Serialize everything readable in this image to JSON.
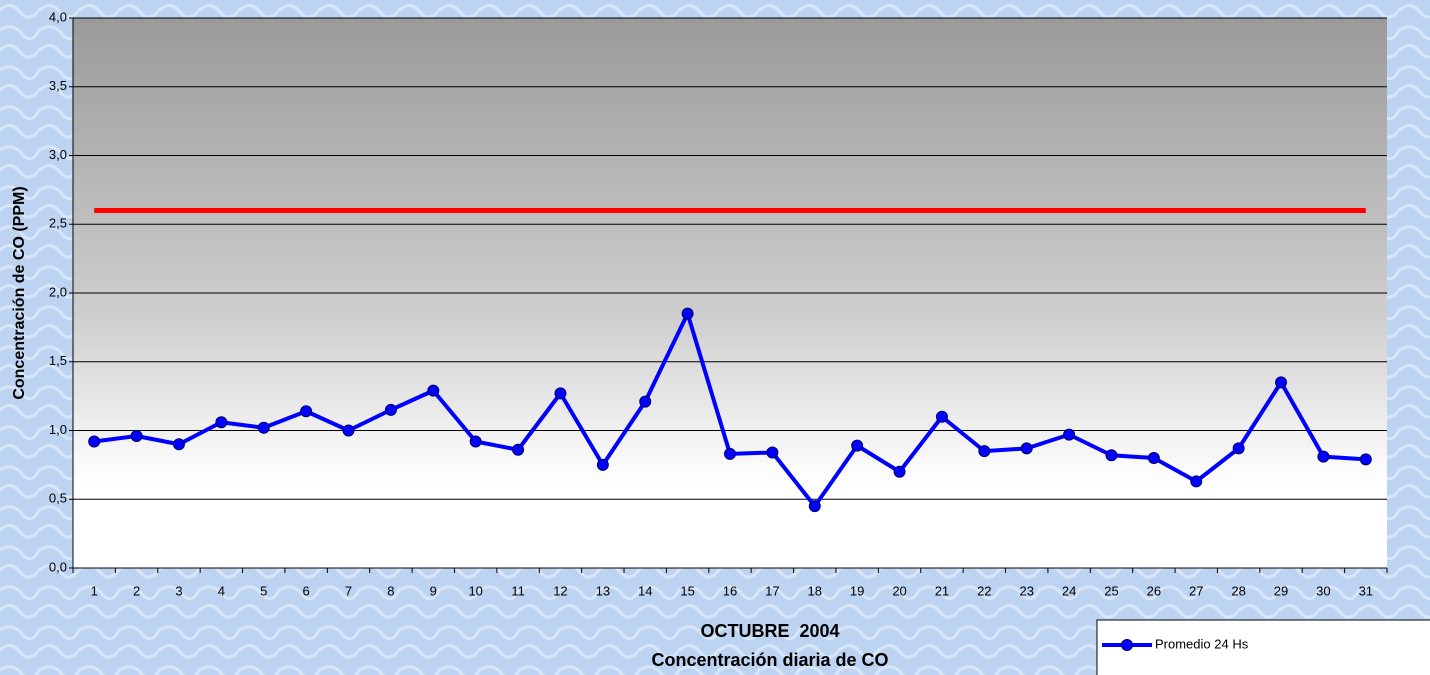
{
  "chart_data": {
    "type": "line",
    "title": "Concentración diaria de CO",
    "xlabel": "OCTUBRE  2004",
    "ylabel": "Concentración de CO (PPM)",
    "categories": [
      "1",
      "2",
      "3",
      "4",
      "5",
      "6",
      "7",
      "8",
      "9",
      "10",
      "11",
      "12",
      "13",
      "14",
      "15",
      "16",
      "17",
      "18",
      "19",
      "20",
      "21",
      "22",
      "23",
      "24",
      "25",
      "26",
      "27",
      "28",
      "29",
      "30",
      "31"
    ],
    "series": [
      {
        "name": "Promedio 24 Hs",
        "color": "#0000ff",
        "values": [
          0.92,
          0.96,
          0.9,
          1.06,
          1.02,
          1.14,
          1.0,
          1.15,
          1.29,
          0.92,
          0.86,
          1.27,
          0.75,
          1.21,
          1.85,
          0.83,
          0.84,
          0.45,
          0.89,
          0.7,
          1.1,
          0.85,
          0.87,
          0.97,
          0.82,
          0.8,
          0.63,
          0.87,
          1.35,
          0.81,
          0.79
        ]
      }
    ],
    "reference_line": {
      "value": 2.6,
      "color": "#ff0000"
    },
    "ylim": [
      0,
      4
    ],
    "yticks": [
      {
        "value": 0,
        "label": "0,0"
      },
      {
        "value": 0.5,
        "label": "0,5"
      },
      {
        "value": 1,
        "label": "1,0"
      },
      {
        "value": 1.5,
        "label": "1,5"
      },
      {
        "value": 2,
        "label": "2,0"
      },
      {
        "value": 2.5,
        "label": "2,5"
      },
      {
        "value": 3,
        "label": "3,0"
      },
      {
        "value": 3.5,
        "label": "3,5"
      },
      {
        "value": 4,
        "label": "4,0"
      }
    ],
    "grid": true,
    "legend": "bottom-right"
  }
}
